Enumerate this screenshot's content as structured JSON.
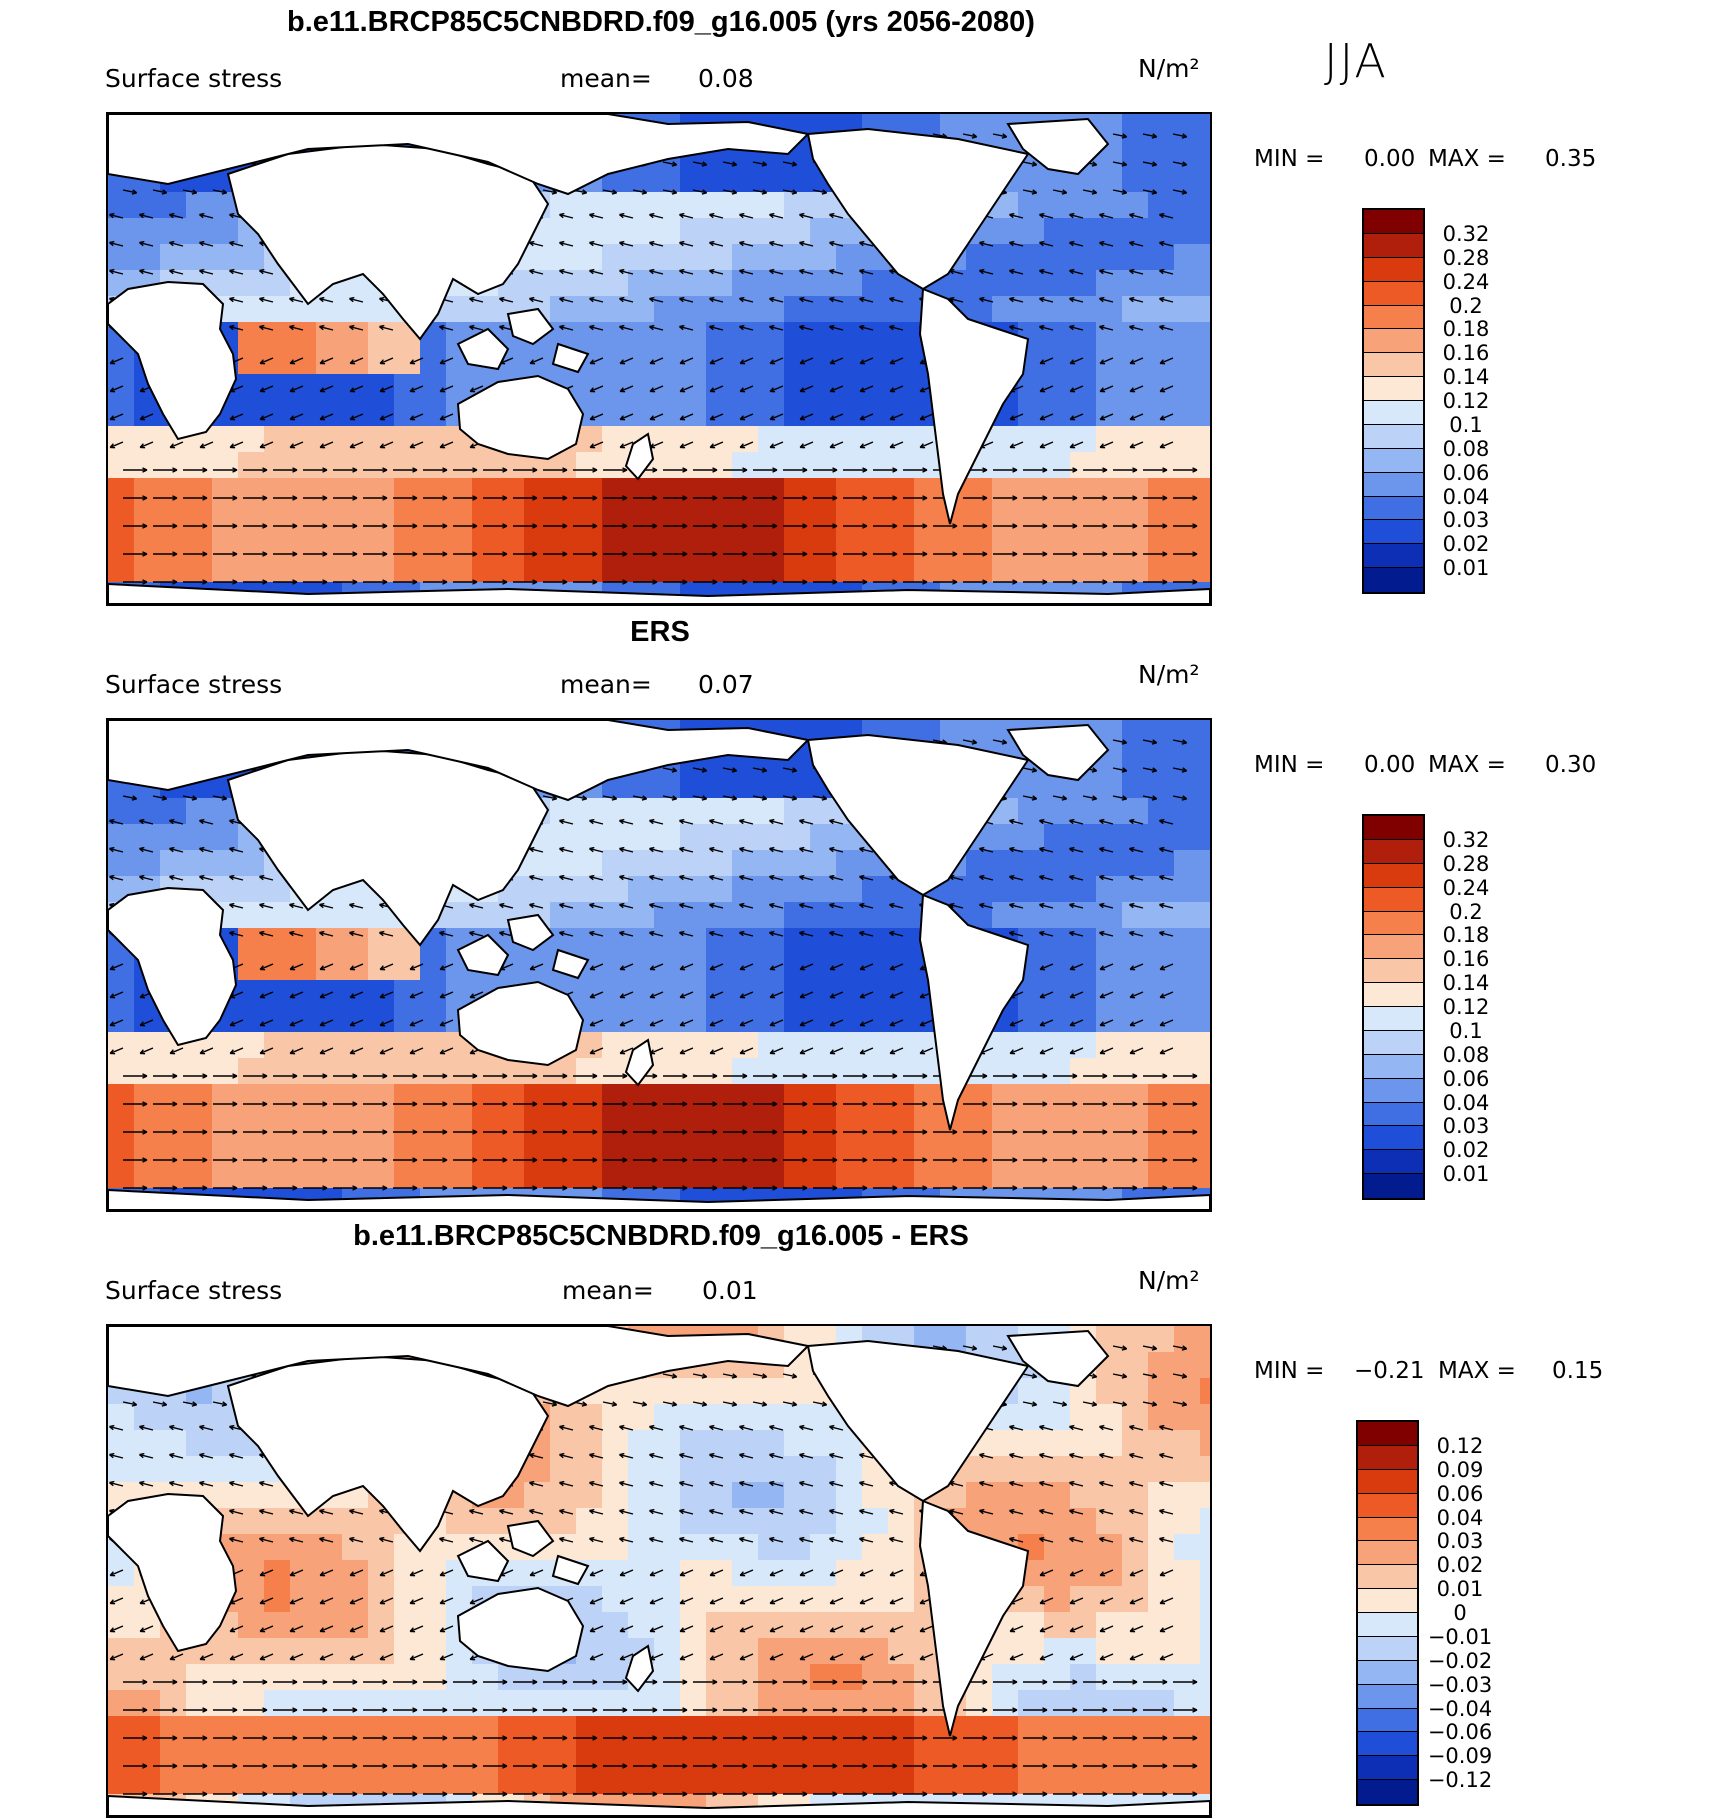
{
  "season": "JJA",
  "land_color": "#ffffff",
  "panels": [
    {
      "id": "model",
      "title": "b.e11.BRCP85C5CNBDRD.f09_g16.005 (yrs 2056-2080)",
      "field_label": "Surface stress",
      "mean_label": "mean=",
      "mean_value": "0.08",
      "units": "N/m²",
      "min_label": "MIN =",
      "min_value": "0.00",
      "max_label": "MAX =",
      "max_value": "0.35",
      "colorbar": {
        "levels": [
          "0.32",
          "0.28",
          "0.24",
          "0.2",
          "0.18",
          "0.16",
          "0.14",
          "0.12",
          "0.1",
          "0.08",
          "0.06",
          "0.04",
          "0.03",
          "0.02",
          "0.01"
        ],
        "colors": [
          "#800000",
          "#b01e0c",
          "#d93a0e",
          "#ee5a26",
          "#f6804c",
          "#f8a27a",
          "#fac6a8",
          "#fde8d6",
          "#d8e8fb",
          "#bcd2f7",
          "#94b6f2",
          "#6c95ec",
          "#3f6fe3",
          "#1f4fd8",
          "#0c2fb5",
          "#021c8f"
        ]
      }
    },
    {
      "id": "obs",
      "title": "ERS",
      "field_label": "Surface stress",
      "mean_label": "mean=",
      "mean_value": "0.07",
      "units": "N/m²",
      "min_label": "MIN =",
      "min_value": "0.00",
      "max_label": "MAX =",
      "max_value": "0.30",
      "colorbar": {
        "levels": [
          "0.32",
          "0.28",
          "0.24",
          "0.2",
          "0.18",
          "0.16",
          "0.14",
          "0.12",
          "0.1",
          "0.08",
          "0.06",
          "0.04",
          "0.03",
          "0.02",
          "0.01"
        ],
        "colors": [
          "#800000",
          "#b01e0c",
          "#d93a0e",
          "#ee5a26",
          "#f6804c",
          "#f8a27a",
          "#fac6a8",
          "#fde8d6",
          "#d8e8fb",
          "#bcd2f7",
          "#94b6f2",
          "#6c95ec",
          "#3f6fe3",
          "#1f4fd8",
          "#0c2fb5",
          "#021c8f"
        ]
      }
    },
    {
      "id": "diff",
      "title": "b.e11.BRCP85C5CNBDRD.f09_g16.005 - ERS",
      "field_label": "Surface stress",
      "mean_label": "mean=",
      "mean_value": "0.01",
      "units": "N/m²",
      "min_label": "MIN =",
      "min_value": "−0.21",
      "max_label": "MAX =",
      "max_value": "0.15",
      "colorbar": {
        "levels": [
          "0.12",
          "0.09",
          "0.06",
          "0.04",
          "0.03",
          "0.02",
          "0.01",
          "0",
          "−0.01",
          "−0.02",
          "−0.03",
          "−0.04",
          "−0.06",
          "−0.09",
          "−0.12"
        ],
        "colors": [
          "#800000",
          "#b01e0c",
          "#d93a0e",
          "#ee5a26",
          "#f6804c",
          "#f8a27a",
          "#fac6a8",
          "#fde8d6",
          "#d8e8fb",
          "#bcd2f7",
          "#94b6f2",
          "#6c95ec",
          "#3f6fe3",
          "#1f4fd8",
          "#0c2fb5",
          "#021c8f"
        ]
      }
    }
  ]
}
